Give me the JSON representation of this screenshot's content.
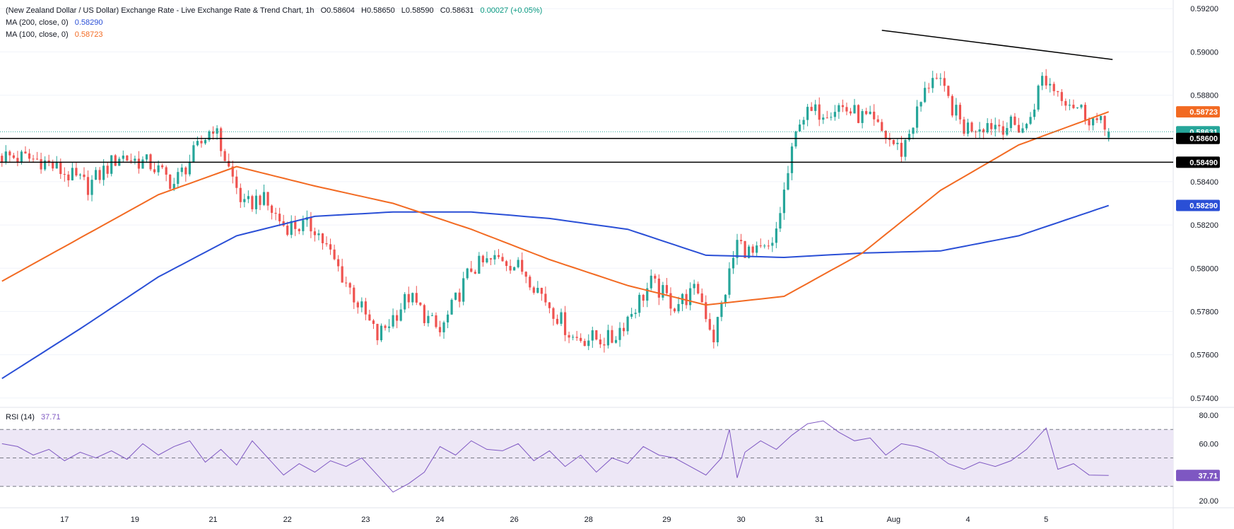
{
  "header": {
    "title": "(New Zealand Dollar / US Dollar) Exchange Rate - Live Exchange Rate & Trend Chart, 1h",
    "open": "O0.58604",
    "high": "H0.58650",
    "low": "L0.58590",
    "close": "C0.58631",
    "change": "0.00027 (+0.05%)",
    "ma200_label": "MA (200, close, 0)",
    "ma200_value": "0.58290",
    "ma100_label": "MA (100, close, 0)",
    "ma100_value": "0.58723",
    "rsi_label": "RSI (14)",
    "rsi_value": "37.71"
  },
  "colors": {
    "bull": "#26a69a",
    "bear": "#ef5350",
    "ma200": "#2a4fd6",
    "ma100": "#f26a22",
    "rsi": "#7e57c2",
    "rsi_band": "#ede7f6",
    "level_line": "#000000"
  },
  "chart_data": [
    {
      "type": "candlestick",
      "series": [
        {
          "name": "MA (200, close, 0)",
          "x": [
            0,
            20,
            40,
            60,
            80,
            100,
            120,
            140,
            160,
            180,
            200,
            220,
            240,
            260,
            283
          ],
          "values": [
            0.5749,
            0.5772,
            0.5796,
            0.5815,
            0.5824,
            0.5826,
            0.5826,
            0.5823,
            0.5818,
            0.5806,
            0.5805,
            0.5807,
            0.5808,
            0.5815,
            0.5829
          ]
        },
        {
          "name": "MA (100, close, 0)",
          "x": [
            0,
            20,
            40,
            60,
            80,
            100,
            120,
            140,
            160,
            180,
            200,
            220,
            240,
            260,
            283
          ],
          "values": [
            0.5794,
            0.5814,
            0.5834,
            0.5847,
            0.5838,
            0.583,
            0.5818,
            0.5804,
            0.5792,
            0.5783,
            0.5787,
            0.5807,
            0.5836,
            0.5857,
            0.58723
          ]
        }
      ],
      "close_path": {
        "x": [
          0,
          10,
          16,
          22,
          30,
          38,
          44,
          54,
          58,
          62,
          66,
          72,
          80,
          96,
          104,
          112,
          120,
          128,
          134,
          146,
          156,
          166,
          172,
          178,
          182,
          188,
          192,
          197,
          204,
          214,
          222,
          230,
          238,
          246,
          252,
          262,
          266,
          276,
          283
        ],
        "values": [
          0.5852,
          0.585,
          0.5844,
          0.5838,
          0.5852,
          0.5848,
          0.5839,
          0.5866,
          0.5846,
          0.5828,
          0.5833,
          0.582,
          0.5819,
          0.5768,
          0.5787,
          0.577,
          0.58,
          0.5805,
          0.5798,
          0.5768,
          0.5767,
          0.5793,
          0.5783,
          0.579,
          0.5768,
          0.5812,
          0.5806,
          0.5809,
          0.587,
          0.5875,
          0.5868,
          0.5854,
          0.589,
          0.5865,
          0.5867,
          0.5865,
          0.5888,
          0.5873,
          0.58631
        ]
      },
      "ylim": [
        0.5736,
        0.5924
      ],
      "y_ticks": [
        "0.59200",
        "0.59000",
        "0.58800",
        "0.58600",
        "0.58400",
        "0.58200",
        "0.58000",
        "0.57800",
        "0.57600",
        "0.57400"
      ],
      "y_tick_values": [
        0.592,
        0.59,
        0.588,
        0.586,
        0.584,
        0.582,
        0.58,
        0.578,
        0.576,
        0.574
      ],
      "horizontal_levels": [
        0.586,
        0.5849
      ],
      "trendline": {
        "x": [
          225,
          284
        ],
        "values": [
          0.591,
          0.58965
        ]
      },
      "price_badges": [
        {
          "label": "0.58723",
          "value": 0.58723,
          "color": "#f26a22"
        },
        {
          "label": "0.58631",
          "value": 0.58631,
          "color": "#26a69a"
        },
        {
          "label": "0.58600",
          "value": 0.586,
          "color": "#000000"
        },
        {
          "label": "0.58490",
          "value": 0.5849,
          "color": "#000000"
        },
        {
          "label": "0.58290",
          "value": 0.5829,
          "color": "#2a4fd6"
        }
      ],
      "x_ticks": [
        {
          "label": "17",
          "x": 16
        },
        {
          "label": "19",
          "x": 34
        },
        {
          "label": "21",
          "x": 54
        },
        {
          "label": "22",
          "x": 73
        },
        {
          "label": "23",
          "x": 93
        },
        {
          "label": "24",
          "x": 112
        },
        {
          "label": "26",
          "x": 131
        },
        {
          "label": "28",
          "x": 150
        },
        {
          "label": "29",
          "x": 170
        },
        {
          "label": "30",
          "x": 189
        },
        {
          "label": "31",
          "x": 209
        },
        {
          "label": "Aug",
          "x": 228
        },
        {
          "label": "4",
          "x": 247
        },
        {
          "label": "5",
          "x": 267
        }
      ]
    },
    {
      "type": "line",
      "series": [
        {
          "name": "RSI (14)",
          "x": [
            0,
            4,
            8,
            12,
            16,
            20,
            24,
            28,
            32,
            36,
            40,
            44,
            48,
            52,
            56,
            60,
            64,
            68,
            72,
            76,
            80,
            84,
            88,
            92,
            96,
            100,
            104,
            108,
            112,
            116,
            120,
            124,
            128,
            132,
            136,
            140,
            144,
            148,
            152,
            156,
            160,
            164,
            168,
            172,
            176,
            180,
            184,
            186,
            188,
            190,
            194,
            198,
            202,
            206,
            210,
            214,
            218,
            222,
            226,
            230,
            234,
            238,
            242,
            246,
            250,
            254,
            258,
            262,
            266,
            267,
            270,
            274,
            278,
            283
          ],
          "values": [
            60,
            58,
            52,
            56,
            48,
            54,
            50,
            55,
            49,
            60,
            52,
            58,
            62,
            47,
            56,
            45,
            62,
            50,
            38,
            46,
            40,
            48,
            44,
            50,
            38,
            26,
            32,
            40,
            58,
            52,
            62,
            56,
            55,
            60,
            48,
            55,
            44,
            52,
            40,
            50,
            46,
            58,
            52,
            50,
            44,
            38,
            50,
            70,
            36,
            54,
            62,
            56,
            66,
            74,
            76,
            68,
            62,
            64,
            52,
            60,
            58,
            54,
            46,
            42,
            47,
            44,
            48,
            56,
            68,
            71,
            42,
            46,
            38,
            37.71
          ]
        }
      ],
      "ylim": [
        15,
        85
      ],
      "y_ticks": [
        "80.00",
        "60.00",
        "20.00"
      ],
      "y_tick_values": [
        80,
        60,
        20
      ],
      "bands": [
        70,
        50,
        30
      ]
    }
  ]
}
